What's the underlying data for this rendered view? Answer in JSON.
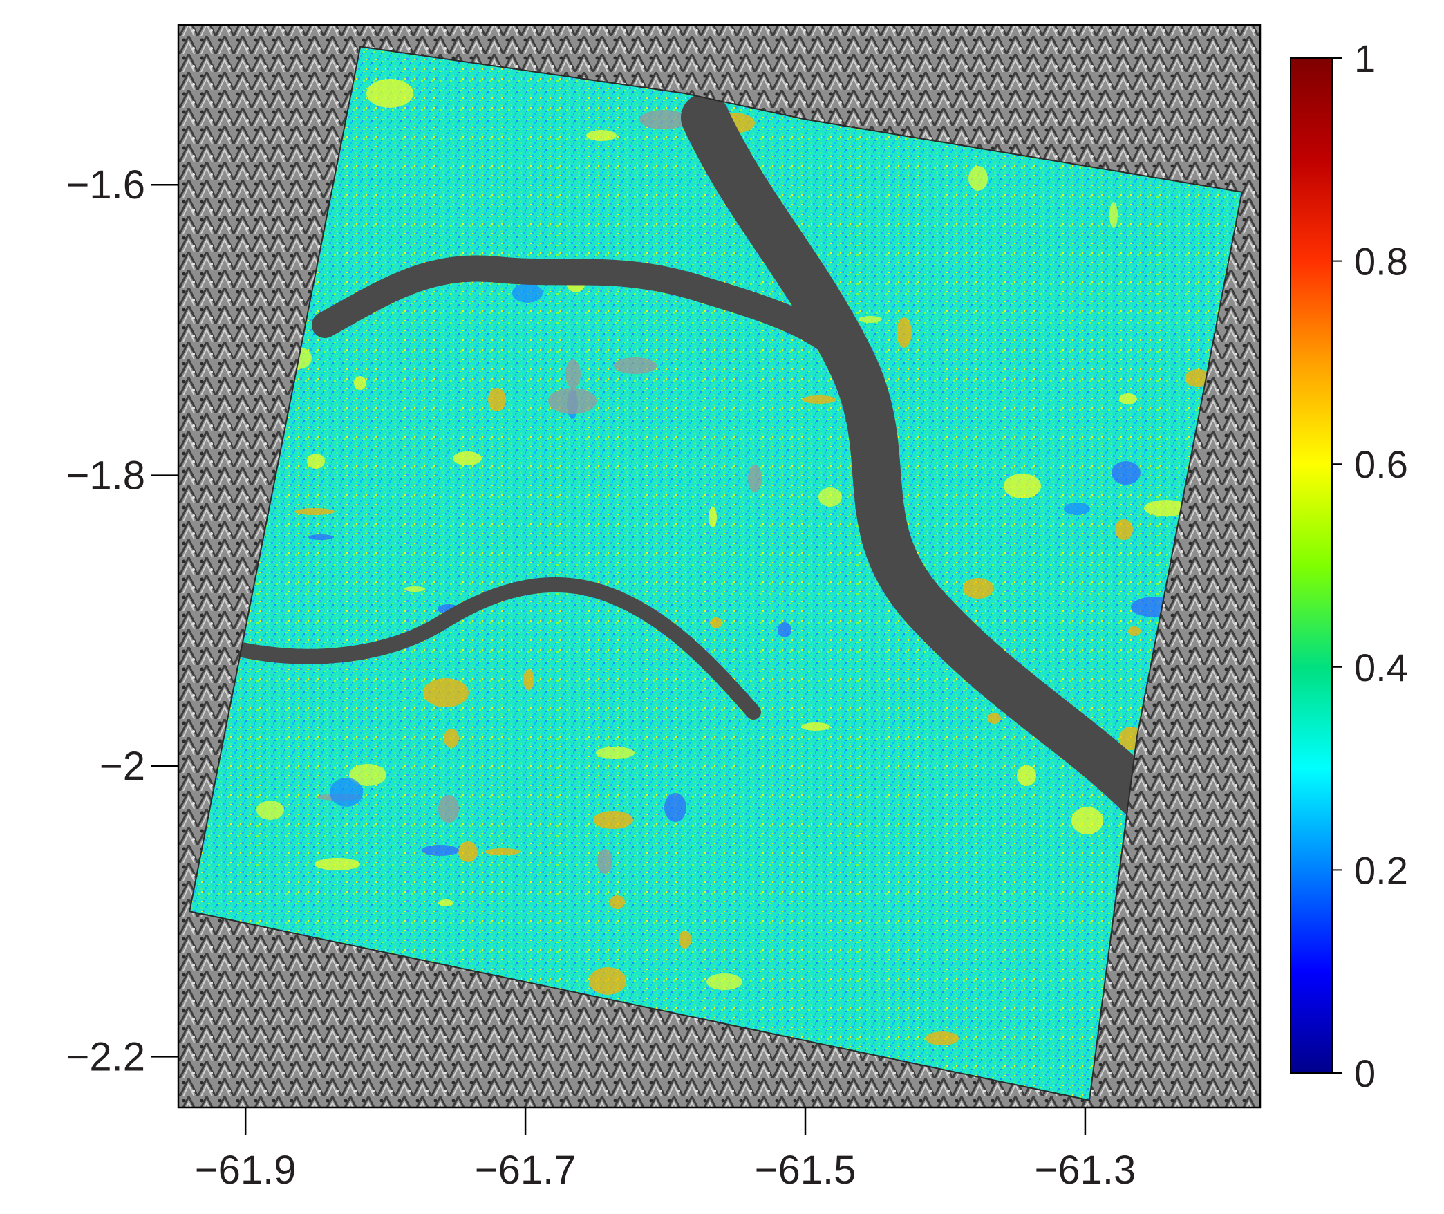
{
  "map": {
    "type": "raster-map",
    "basemap": "hillshade-relief",
    "x_axis": {
      "ticks": [
        -61.9,
        -61.7,
        -61.5,
        -61.3
      ],
      "tick_labels": [
        "−61.9",
        "−61.7",
        "−61.5",
        "−61.3"
      ],
      "range": [
        -61.948,
        -61.175
      ]
    },
    "y_axis": {
      "ticks": [
        -1.6,
        -1.8,
        -2.0,
        -2.2
      ],
      "tick_labels": [
        "−1.6",
        "−1.8",
        "−2",
        "−2.2"
      ],
      "range": [
        -2.235,
        -1.49
      ]
    },
    "raster_footprint_lonlat": [
      [
        -61.818,
        -1.505
      ],
      [
        -61.587,
        -1.537
      ],
      [
        -61.5,
        -1.555
      ],
      [
        -61.188,
        -1.605
      ],
      [
        -61.263,
        -1.98
      ],
      [
        -61.297,
        -2.23
      ],
      [
        -61.94,
        -2.1
      ]
    ],
    "river_color": "#4a4a4a",
    "colorbar": {
      "colormap": "jet",
      "range": [
        0,
        1
      ],
      "ticks": [
        0,
        0.2,
        0.4,
        0.6,
        0.8,
        1
      ],
      "tick_labels": [
        "0",
        "0.2",
        "0.4",
        "0.6",
        "0.8",
        "1"
      ],
      "stops": [
        "#00008b",
        "#0000ff",
        "#0080ff",
        "#00ffff",
        "#00e080",
        "#80ff00",
        "#ffff00",
        "#ffa000",
        "#ff3000",
        "#c00000",
        "#7f0000"
      ]
    },
    "colors": {
      "frame": "#000000",
      "text": "#231f20"
    }
  }
}
